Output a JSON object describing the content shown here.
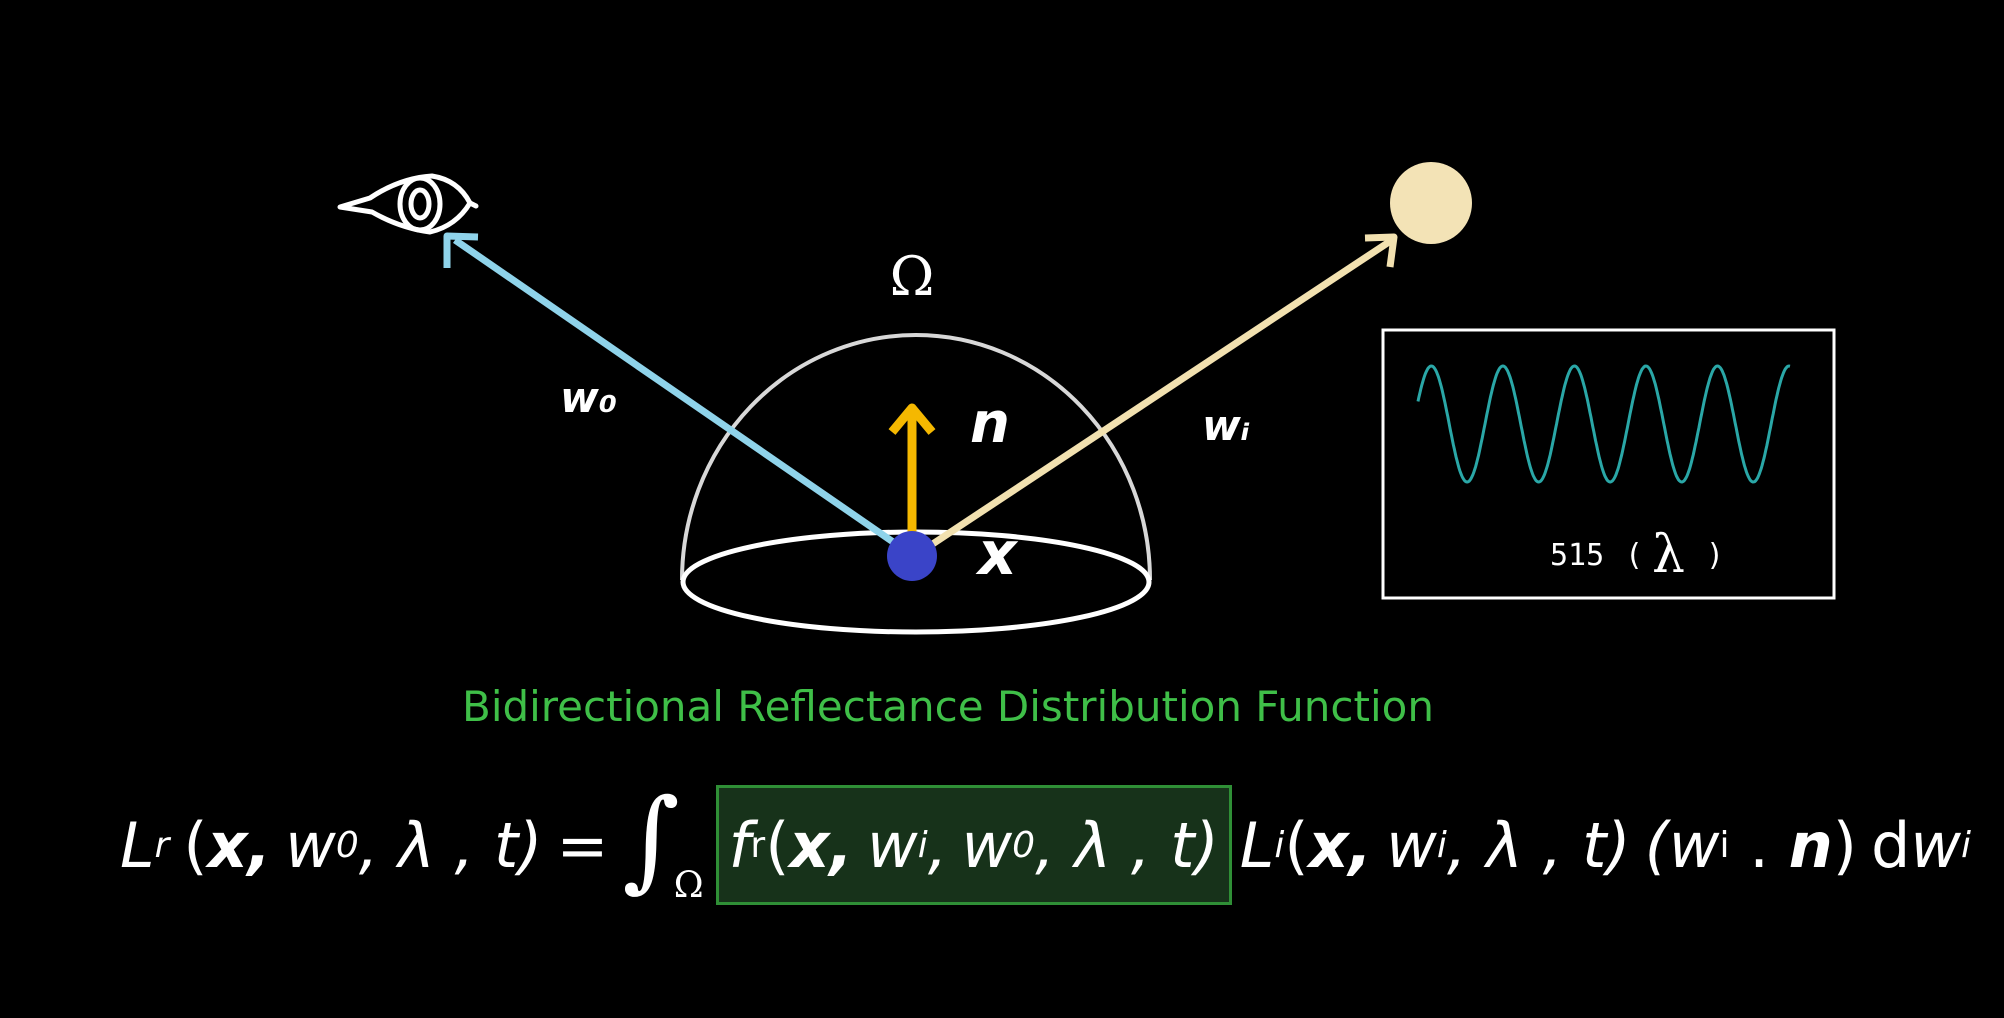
{
  "diagram": {
    "omega_label": "Ω",
    "normal_label": "n",
    "point_label": "x",
    "outgoing_label": "w₀",
    "incoming_label": "wᵢ",
    "colors": {
      "background": "#000000",
      "outgoing_ray": "#8fd3ea",
      "incoming_ray": "#f2e1b0",
      "normal_arrow": "#f5b800",
      "surface_point": "#3a44c8",
      "light_source": "#f3e3b6",
      "hemisphere": "#d8d8d8",
      "wave": "#2aa7a7",
      "caption": "#3fbf48"
    },
    "icons": {
      "viewer": "eye-icon",
      "light": "sun-icon"
    }
  },
  "wavelength_panel": {
    "value": "515",
    "open_paren": "(",
    "symbol": "λ",
    "close_paren": ")"
  },
  "equation": {
    "caption": "Bidirectional Reflectance Distribution Function",
    "lhs_L": "L",
    "lhs_sub": "r",
    "lhs_args_open": "(",
    "lhs_x": "x,",
    "lhs_w": "w",
    "lhs_w_sub": "0",
    "lhs_rest": ", λ , t)",
    "equals": "=",
    "integral": "∫",
    "integral_sub": "Ω",
    "brdf_f": "f",
    "brdf_sub": "r",
    "brdf_open": "(",
    "brdf_x": "x,",
    "brdf_wi": "w",
    "brdf_wi_sub": "i",
    "brdf_sep": ",",
    "brdf_wo": "w",
    "brdf_wo_sub": "0",
    "brdf_rest": ", λ , t)",
    "li_L": "L",
    "li_sub": "i",
    "li_open": "(",
    "li_x": "x,",
    "li_w": "w",
    "li_w_sub": "i",
    "li_rest": ", λ , t)",
    "dot_open": "(w",
    "dot_sub": "i",
    "dot_mid": " . ",
    "dot_n": "n",
    "dot_close": ")",
    "d": "d",
    "dw": "w",
    "dw_sub": "i"
  }
}
